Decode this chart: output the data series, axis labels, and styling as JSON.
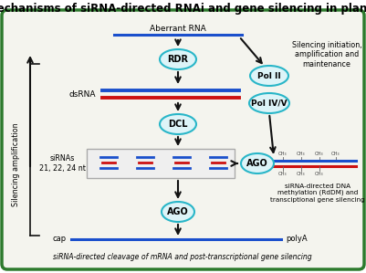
{
  "title": "Mechanisms of siRNA-directed RNAi and gene silencing in plants",
  "title_fontsize": 8.5,
  "background_color": "#ffffff",
  "border_color": "#2d7a2d",
  "inner_bg": "#f4f4ee",
  "cyan_color": "#29b6c8",
  "cyan_fill": "#ddf4f8",
  "arrow_color": "#111111",
  "blue_line": "#1a4fcc",
  "red_line": "#cc1111",
  "dark_line": "#111111",
  "bottom_text": "siRNA-directed cleavage of mRNA and post-transcriptional gene silencing",
  "left_label": "Silencing amplification",
  "top_label": "Aberrant RNA",
  "dsrna_label": "dsRNA",
  "sirnas_label": "siRNAs\n21, 22, 24 nt",
  "rdr_label": "RDR",
  "dcl_label": "DCL",
  "ago1_label": "AGO",
  "ago2_label": "AGO",
  "pol2_label": "Pol II",
  "pol45_label": "Pol IV/V",
  "right_text1": "Silencing initiation,\namplification and\nmaintenance",
  "right_text2": "siRNA-directed DNA\nmethylation (RdDM) and\ntransciptional gene silencing",
  "cap_label": "cap",
  "polya_label": "polyA",
  "fig_width": 4.01,
  "fig_height": 2.99,
  "dpi": 100
}
